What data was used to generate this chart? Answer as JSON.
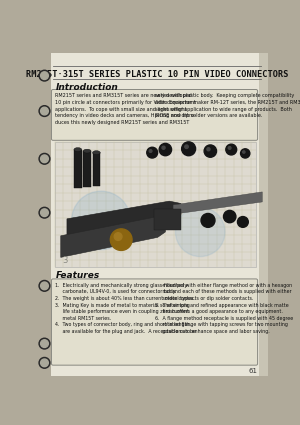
{
  "title": "RM215T·315T SERIES PLASTIC 10 PIN VIDEO CONNECTORS",
  "outer_bg": "#b0aa9a",
  "page_bg": "#e8e5d8",
  "intro_heading": "Introduction",
  "intro_text_left": "RM215T series and RM315T series are newly developed\n10 pin circle at connectors primarily for Video Equipment\napplications.  To cope with small size and light weight\ntendency in video decks and cameras, HIROSE now intro-\nduces this newly designed RM215T series and RM315T",
  "intro_text_right": "series with plastic body.  Keeping complete compatibility\nwith connector maker RM-12T series, the RM215T and RM315\nseries offer application to wide range of products.  Both\npiring and dip solder versions are available.",
  "features_heading": "Features",
  "features_text_left": "1.  Electrically and mechanically strong glass-filled poly-\n     carbonate, UL94V-0, is used for connector body.\n2.  The weight is about 40% less than current metal types.\n3.  Mating Key is made of metal to material so after long\n     life stable performance even in coupling zero current\n     metal RM15T series.\n4.  Two types of connector body, ring and short in length,\n     are available for the plug and jack.  A receptacle can be",
  "features_text_right": "     mounted with either flange method or with a hexagon\n     nut and each of these methods is supplied with either\n     solder contacts or dip solder contacts.\n5.  The simple and refined appearance with black matte\n     finish offers a good appearance to any equipment.\n6.  A flange method receptacle is supplied with 45 degree\n     rotated flange with tapping screws for two mounting\n     positions to enhance space and labor saving.",
  "page_number": "61",
  "grid_color": "#c8c4a8",
  "grid_bg": "#dedad0",
  "hole_outer": "#2a2a2a",
  "hole_inner": "#aaa89a"
}
